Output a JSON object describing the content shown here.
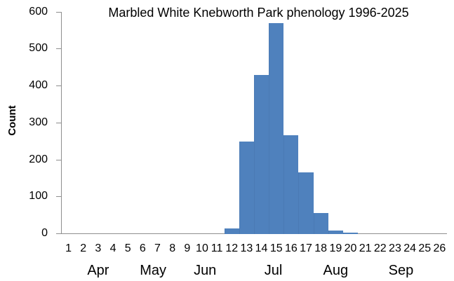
{
  "title": "Marbled White Knebworth Park phenology 1996-2025",
  "y_axis": {
    "label": "Count",
    "tick_labels": [
      "0",
      "100",
      "200",
      "300",
      "400",
      "500",
      "600"
    ]
  },
  "chart_data": {
    "type": "bar",
    "title": "Marbled White Knebworth Park phenology 1996-2025",
    "xlabel": "",
    "ylabel": "Count",
    "ylim": [
      0,
      600
    ],
    "ytick_interval": 100,
    "grid": false,
    "legend": false,
    "gap_width": 0,
    "categories": [
      1,
      2,
      3,
      4,
      5,
      6,
      7,
      8,
      9,
      10,
      11,
      12,
      13,
      14,
      15,
      16,
      17,
      18,
      19,
      20,
      21,
      22,
      23,
      24,
      25,
      26
    ],
    "values": [
      0,
      0,
      0,
      0,
      0,
      0,
      0,
      0,
      0,
      0,
      0,
      15,
      250,
      430,
      570,
      268,
      167,
      57,
      10,
      3,
      0,
      0,
      0,
      0,
      0,
      0
    ],
    "month_labels": [
      "Apr",
      "May",
      "Jun",
      "Jul",
      "Aug",
      "Sep"
    ],
    "bar_color": "#4F81BD",
    "axis_color": "#8E8E8E",
    "text_color": "#000000"
  }
}
